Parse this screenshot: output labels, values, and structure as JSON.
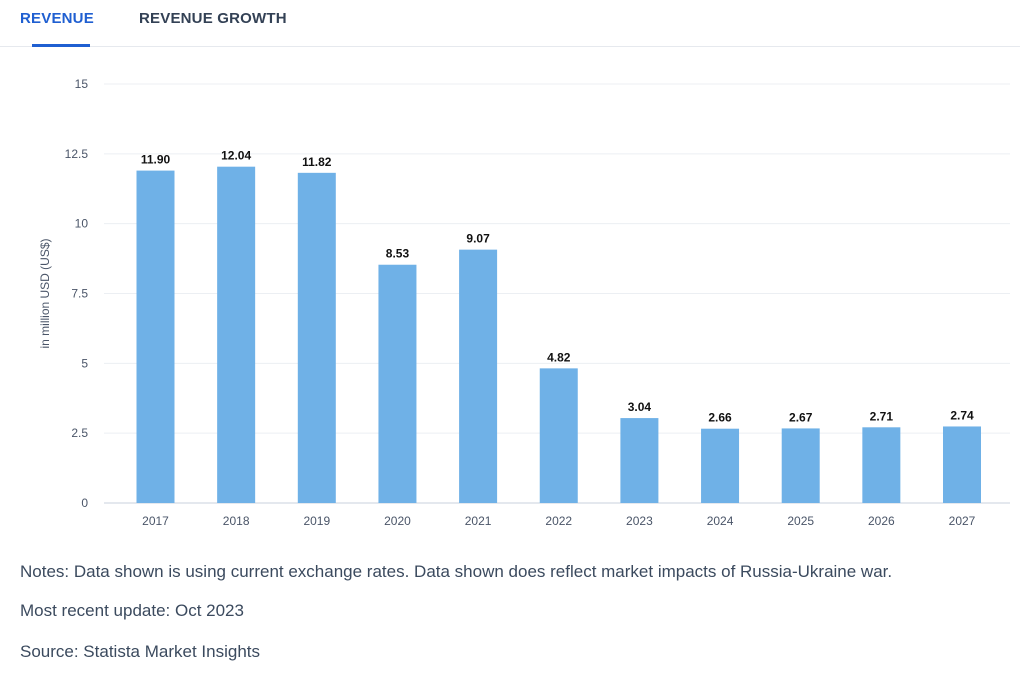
{
  "tabs": [
    {
      "label": "REVENUE",
      "active": true
    },
    {
      "label": "REVENUE GROWTH",
      "active": false
    }
  ],
  "chart_data": {
    "type": "bar",
    "title": "",
    "xlabel": "",
    "ylabel": "in million USD (US$)",
    "categories": [
      "2017",
      "2018",
      "2019",
      "2020",
      "2021",
      "2022",
      "2023",
      "2024",
      "2025",
      "2026",
      "2027"
    ],
    "values": [
      11.9,
      12.04,
      11.82,
      8.53,
      9.07,
      4.82,
      3.04,
      2.66,
      2.67,
      2.71,
      2.74
    ],
    "value_labels": [
      "11.90",
      "12.04",
      "11.82",
      "8.53",
      "9.07",
      "4.82",
      "3.04",
      "2.66",
      "2.67",
      "2.71",
      "2.74"
    ],
    "ylim": [
      0,
      15
    ],
    "yticks": [
      0,
      2.5,
      5,
      7.5,
      10,
      12.5,
      15
    ],
    "ytick_labels": [
      "0",
      "2.5",
      "5",
      "7.5",
      "10",
      "12.5",
      "15"
    ],
    "grid": true,
    "bar_color": "#6fb1e7"
  },
  "notes": {
    "line1": "Notes: Data shown is using current exchange rates. Data shown does reflect market impacts of Russia-Ukraine war.",
    "line2": "Most recent update: Oct 2023",
    "line3": "Source: Statista Market Insights"
  }
}
